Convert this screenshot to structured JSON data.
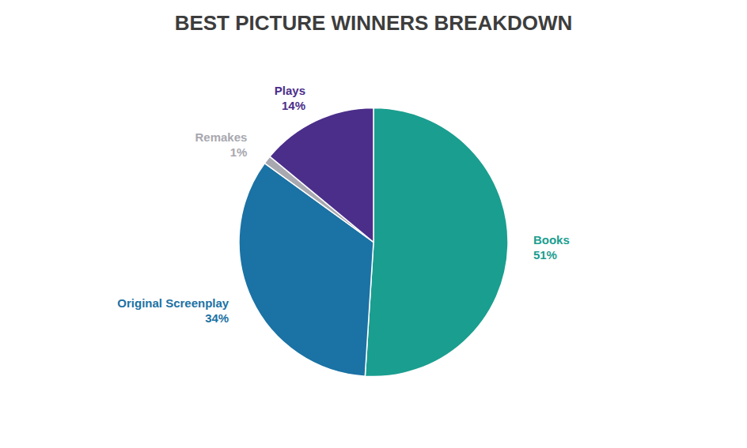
{
  "chart_data": {
    "type": "pie",
    "title": "BEST PICTURE WINNERS BREAKDOWN",
    "categories": [
      "Books",
      "Original Screenplay",
      "Remakes",
      "Plays"
    ],
    "values": [
      51,
      34,
      1,
      14
    ],
    "value_labels": [
      "51%",
      "34%",
      "1%",
      "14%"
    ],
    "colors": [
      "#1a9e8f",
      "#1b72a4",
      "#a8a8b0",
      "#4b2e8a"
    ],
    "data_labels": true
  }
}
